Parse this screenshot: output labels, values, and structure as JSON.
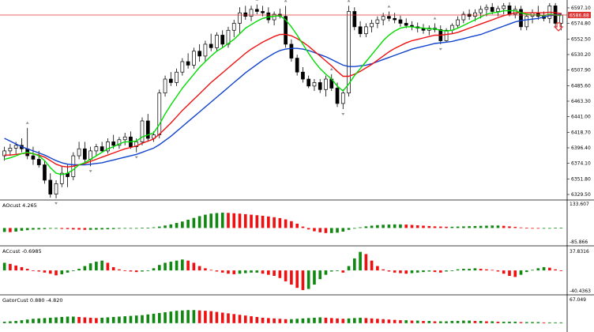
{
  "colors": {
    "background": "#ffffff",
    "bull": "#ffffff",
    "bear": "#000000",
    "ma_fast": "#00dd00",
    "ma_mid": "#ee1111",
    "ma_slow": "#1144cc",
    "hist_up": "#118811",
    "hist_down": "#ee1111",
    "current_price_line": "#dd3333",
    "arrow": "#dd3333",
    "fractal": "#909090"
  },
  "main_chart": {
    "current_price": "6586.88",
    "price_ticks": [
      "6597.10",
      "6574.80",
      "6552.50",
      "6530.20",
      "6507.90",
      "6485.60",
      "6463.30",
      "6441.00",
      "6418.70",
      "6396.40",
      "6374.10",
      "6351.80",
      "6329.50"
    ],
    "sell_arrow_icon": "down-arrow-icon"
  },
  "chart_data": [
    {
      "type": "candlestick",
      "title": "",
      "ylim": [
        6325,
        6605
      ],
      "ohlc": [
        [
          6385,
          6398,
          6378,
          6392
        ],
        [
          6392,
          6402,
          6385,
          6396
        ],
        [
          6396,
          6405,
          6388,
          6400
        ],
        [
          6400,
          6410,
          6390,
          6395
        ],
        [
          6395,
          6425,
          6380,
          6385
        ],
        [
          6385,
          6398,
          6372,
          6380
        ],
        [
          6380,
          6392,
          6368,
          6372
        ],
        [
          6372,
          6378,
          6345,
          6350
        ],
        [
          6350,
          6360,
          6325,
          6330
        ],
        [
          6330,
          6350,
          6324,
          6345
        ],
        [
          6345,
          6370,
          6340,
          6360
        ],
        [
          6360,
          6372,
          6340,
          6355
        ],
        [
          6355,
          6390,
          6350,
          6385
        ],
        [
          6385,
          6405,
          6380,
          6395
        ],
        [
          6395,
          6405,
          6375,
          6380
        ],
        [
          6380,
          6398,
          6370,
          6392
        ],
        [
          6392,
          6402,
          6385,
          6398
        ],
        [
          6398,
          6405,
          6390,
          6392
        ],
        [
          6392,
          6410,
          6388,
          6405
        ],
        [
          6405,
          6415,
          6395,
          6400
        ],
        [
          6400,
          6412,
          6395,
          6408
        ],
        [
          6408,
          6418,
          6400,
          6412
        ],
        [
          6412,
          6420,
          6395,
          6398
        ],
        [
          6398,
          6410,
          6390,
          6405
        ],
        [
          6405,
          6440,
          6400,
          6435
        ],
        [
          6435,
          6445,
          6405,
          6410
        ],
        [
          6410,
          6420,
          6405,
          6415
        ],
        [
          6415,
          6480,
          6410,
          6475
        ],
        [
          6475,
          6500,
          6470,
          6495
        ],
        [
          6495,
          6505,
          6485,
          6490
        ],
        [
          6490,
          6510,
          6485,
          6505
        ],
        [
          6505,
          6525,
          6500,
          6520
        ],
        [
          6520,
          6532,
          6510,
          6515
        ],
        [
          6515,
          6540,
          6510,
          6535
        ],
        [
          6535,
          6545,
          6520,
          6528
        ],
        [
          6528,
          6550,
          6520,
          6545
        ],
        [
          6545,
          6560,
          6535,
          6540
        ],
        [
          6540,
          6562,
          6535,
          6558
        ],
        [
          6558,
          6565,
          6540,
          6545
        ],
        [
          6545,
          6570,
          6540,
          6565
        ],
        [
          6565,
          6580,
          6555,
          6575
        ],
        [
          6575,
          6598,
          6560,
          6590
        ],
        [
          6590,
          6600,
          6580,
          6585
        ],
        [
          6585,
          6600,
          6578,
          6595
        ],
        [
          6595,
          6602,
          6588,
          6592
        ],
        [
          6592,
          6600,
          6585,
          6590
        ],
        [
          6590,
          6598,
          6575,
          6580
        ],
        [
          6580,
          6592,
          6572,
          6588
        ],
        [
          6588,
          6596,
          6582,
          6585
        ],
        [
          6585,
          6600,
          6540,
          6545
        ],
        [
          6545,
          6552,
          6520,
          6525
        ],
        [
          6525,
          6530,
          6500,
          6505
        ],
        [
          6505,
          6512,
          6490,
          6495
        ],
        [
          6495,
          6500,
          6482,
          6485
        ],
        [
          6485,
          6495,
          6478,
          6490
        ],
        [
          6490,
          6495,
          6475,
          6480
        ],
        [
          6480,
          6500,
          6470,
          6495
        ],
        [
          6495,
          6502,
          6478,
          6482
        ],
        [
          6482,
          6490,
          6455,
          6460
        ],
        [
          6460,
          6480,
          6452,
          6475
        ],
        [
          6475,
          6600,
          6470,
          6592
        ],
        [
          6592,
          6598,
          6565,
          6570
        ],
        [
          6570,
          6578,
          6555,
          6560
        ],
        [
          6560,
          6575,
          6555,
          6570
        ],
        [
          6570,
          6580,
          6562,
          6575
        ],
        [
          6575,
          6585,
          6568,
          6580
        ],
        [
          6580,
          6590,
          6572,
          6585
        ],
        [
          6585,
          6592,
          6578,
          6582
        ],
        [
          6582,
          6590,
          6575,
          6580
        ],
        [
          6580,
          6586,
          6570,
          6575
        ],
        [
          6575,
          6582,
          6568,
          6572
        ],
        [
          6572,
          6578,
          6565,
          6570
        ],
        [
          6570,
          6576,
          6562,
          6568
        ],
        [
          6568,
          6574,
          6560,
          6565
        ],
        [
          6565,
          6572,
          6558,
          6568
        ],
        [
          6568,
          6575,
          6562,
          6566
        ],
        [
          6566,
          6572,
          6545,
          6550
        ],
        [
          6550,
          6568,
          6548,
          6565
        ],
        [
          6565,
          6575,
          6560,
          6572
        ],
        [
          6572,
          6585,
          6568,
          6580
        ],
        [
          6580,
          6592,
          6575,
          6588
        ],
        [
          6588,
          6595,
          6580,
          6585
        ],
        [
          6585,
          6595,
          6578,
          6590
        ],
        [
          6590,
          6600,
          6582,
          6595
        ],
        [
          6595,
          6602,
          6585,
          6598
        ],
        [
          6598,
          6604,
          6588,
          6592
        ],
        [
          6592,
          6600,
          6585,
          6596
        ],
        [
          6596,
          6604,
          6588,
          6600
        ],
        [
          6600,
          6605,
          6585,
          6588
        ],
        [
          6588,
          6600,
          6582,
          6595
        ],
        [
          6595,
          6600,
          6565,
          6570
        ],
        [
          6570,
          6588,
          6565,
          6585
        ],
        [
          6585,
          6595,
          6575,
          6590
        ],
        [
          6590,
          6600,
          6580,
          6585
        ],
        [
          6585,
          6592,
          6578,
          6582
        ],
        [
          6582,
          6604,
          6575,
          6600
        ],
        [
          6600,
          6604,
          6570,
          6575
        ],
        [
          6575,
          6590,
          6565,
          6587
        ]
      ],
      "ma_fast": [
        6380,
        6382,
        6385,
        6388,
        6390,
        6388,
        6385,
        6378,
        6368,
        6360,
        6358,
        6360,
        6365,
        6372,
        6375,
        6380,
        6385,
        6390,
        6395,
        6398,
        6402,
        6405,
        6405,
        6406,
        6412,
        6415,
        6418,
        6430,
        6445,
        6458,
        6470,
        6482,
        6492,
        6502,
        6512,
        6520,
        6528,
        6535,
        6540,
        6546,
        6552,
        6560,
        6568,
        6573,
        6578,
        6582,
        6584,
        6585,
        6586,
        6580,
        6570,
        6558,
        6545,
        6532,
        6520,
        6510,
        6502,
        6495,
        6485,
        6478,
        6488,
        6500,
        6510,
        6520,
        6530,
        6540,
        6550,
        6558,
        6564,
        6568,
        6570,
        6570,
        6569,
        6568,
        6567,
        6567,
        6565,
        6564,
        6565,
        6568,
        6572,
        6576,
        6580,
        6584,
        6588,
        6590,
        6591,
        6593,
        6593,
        6593,
        6590,
        6588,
        6587,
        6587,
        6586,
        6588,
        6587,
        6586
      ],
      "ma_mid": [
        6386,
        6386,
        6387,
        6388,
        6389,
        6388,
        6386,
        6383,
        6378,
        6373,
        6370,
        6369,
        6370,
        6372,
        6374,
        6377,
        6380,
        6383,
        6386,
        6389,
        6392,
        6395,
        6397,
        6399,
        6403,
        6406,
        6409,
        6416,
        6424,
        6432,
        6441,
        6450,
        6458,
        6466,
        6474,
        6482,
        6490,
        6497,
        6504,
        6511,
        6518,
        6525,
        6532,
        6538,
        6543,
        6548,
        6552,
        6556,
        6559,
        6559,
        6557,
        6553,
        6548,
        6542,
        6535,
        6528,
        6521,
        6514,
        6506,
        6499,
        6499,
        6502,
        6506,
        6511,
        6516,
        6522,
        6528,
        6534,
        6539,
        6543,
        6547,
        6550,
        6552,
        6554,
        6556,
        6558,
        6558,
        6559,
        6560,
        6562,
        6565,
        6568,
        6571,
        6574,
        6577,
        6580,
        6583,
        6586,
        6588,
        6590,
        6590,
        6590,
        6590,
        6590,
        6590,
        6591,
        6590,
        6589
      ],
      "ma_slow": [
        6410,
        6406,
        6402,
        6398,
        6395,
        6392,
        6389,
        6386,
        6382,
        6378,
        6375,
        6373,
        6372,
        6372,
        6372,
        6373,
        6374,
        6375,
        6377,
        6379,
        6381,
        6383,
        6385,
        6387,
        6390,
        6393,
        6396,
        6401,
        6407,
        6413,
        6420,
        6427,
        6434,
        6441,
        6448,
        6455,
        6462,
        6469,
        6476,
        6483,
        6490,
        6497,
        6504,
        6510,
        6516,
        6522,
        6527,
        6532,
        6536,
        6538,
        6539,
        6539,
        6538,
        6536,
        6533,
        6530,
        6527,
        6523,
        6519,
        6515,
        6513,
        6513,
        6514,
        6515,
        6517,
        6520,
        6523,
        6526,
        6529,
        6532,
        6535,
        6538,
        6540,
        6542,
        6544,
        6546,
        6547,
        6548,
        6549,
        6551,
        6553,
        6555,
        6557,
        6559,
        6562,
        6565,
        6568,
        6571,
        6574,
        6577,
        6579,
        6580,
        6581,
        6582,
        6584,
        6586,
        6587,
        6588
      ]
    },
    {
      "type": "bar",
      "title": "AOcust 4.265",
      "ylim": [
        -85.866,
        133.607
      ],
      "tick_labels": [
        "133.607",
        "-85.866"
      ],
      "values": [
        -22,
        -23,
        -20,
        -15,
        -12,
        -9,
        -8,
        -6,
        -4,
        -4,
        -5,
        -6,
        -8,
        -9,
        -10,
        -10,
        -9,
        -8,
        -7,
        -6,
        -4,
        -3,
        -1,
        0,
        1,
        2,
        4,
        8,
        14,
        20,
        28,
        36,
        46,
        56,
        66,
        74,
        80,
        83,
        85,
        84,
        82,
        80,
        77,
        74,
        71,
        68,
        64,
        60,
        55,
        48,
        38,
        24,
        8,
        -8,
        -18,
        -24,
        -28,
        -28,
        -26,
        -20,
        -10,
        -2,
        4,
        9,
        13,
        16,
        18,
        19,
        20,
        20,
        19,
        17,
        15,
        13,
        11,
        9,
        8,
        7,
        7,
        8,
        9,
        10,
        11,
        12,
        13,
        14,
        14,
        12,
        9,
        6,
        3,
        1,
        0,
        -1,
        -1,
        0,
        1,
        2
      ]
    },
    {
      "type": "bar",
      "title": "ACcust -0.6985",
      "ylim": [
        -40.4363,
        37.8316
      ],
      "tick_labels": [
        "37.8316",
        "-40.4363"
      ],
      "values": [
        14,
        12,
        9,
        6,
        3,
        0,
        -2,
        -4,
        -6,
        -9,
        -7,
        -4,
        -1,
        3,
        8,
        13,
        16,
        18,
        14,
        6,
        2,
        0,
        -2,
        -3,
        -2,
        0,
        4,
        10,
        14,
        16,
        18,
        20,
        18,
        14,
        8,
        4,
        1,
        -2,
        -4,
        -6,
        -7,
        -6,
        -5,
        -4,
        -4,
        -6,
        -8,
        -10,
        -14,
        -20,
        -26,
        -32,
        -36,
        -34,
        -26,
        -16,
        -8,
        -2,
        0,
        -4,
        8,
        22,
        34,
        30,
        18,
        8,
        2,
        -2,
        -4,
        -5,
        -6,
        -5,
        -4,
        -3,
        -2,
        -3,
        -4,
        -2,
        0,
        2,
        3,
        3,
        4,
        3,
        2,
        1,
        -2,
        -6,
        -10,
        -12,
        -8,
        -3,
        1,
        4,
        6,
        5,
        2,
        -1
      ]
    },
    {
      "type": "bar",
      "title": "GatorCust 0.880 -4.820",
      "ylim": [
        -20,
        67.049
      ],
      "tick_labels": [
        "67.049"
      ],
      "values": [
        4,
        5,
        6,
        8,
        10,
        12,
        13,
        14,
        15,
        16,
        17,
        18,
        18,
        17,
        16,
        15,
        14,
        15,
        16,
        17,
        18,
        19,
        20,
        21,
        22,
        24,
        26,
        28,
        30,
        32,
        34,
        35,
        36,
        36,
        35,
        34,
        33,
        31,
        29,
        27,
        25,
        23,
        21,
        19,
        17,
        15,
        14,
        13,
        12,
        11,
        11,
        12,
        13,
        14,
        15,
        16,
        15,
        14,
        13,
        12,
        13,
        14,
        15,
        14,
        13,
        12,
        11,
        10,
        9,
        8,
        8,
        7,
        7,
        6,
        6,
        5,
        5,
        5,
        6,
        6,
        7,
        7,
        6,
        6,
        5,
        5,
        4,
        4,
        4,
        4,
        3,
        3,
        3,
        3,
        2,
        2,
        2,
        2
      ]
    }
  ],
  "panels": {
    "ao_label": "AOcust 4.265",
    "ao_max": "133.607",
    "ao_min": "-85.866",
    "ac_label": "ACcust -0.6985",
    "ac_max": "37.8316",
    "ac_min": "-40.4363",
    "gator_label": "GatorCust 0.880 -4.820",
    "gator_max": "67.049"
  }
}
